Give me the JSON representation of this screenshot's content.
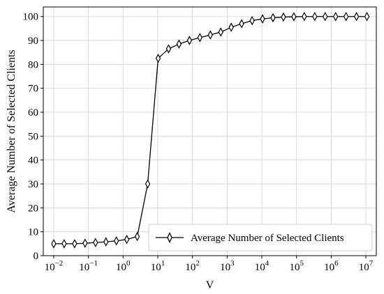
{
  "chart_data": {
    "type": "line",
    "xscale": "log",
    "xlabel": "V",
    "ylabel": "Average Number of Selected Clients",
    "xlim": [
      0.005,
      20000000
    ],
    "ylim": [
      0,
      104
    ],
    "grid": true,
    "legend_position": "lower right",
    "x_ticks": [
      {
        "base": "10",
        "exp": "−2",
        "value": 0.01
      },
      {
        "base": "10",
        "exp": "−1",
        "value": 0.1
      },
      {
        "base": "10",
        "exp": "0",
        "value": 1
      },
      {
        "base": "10",
        "exp": "1",
        "value": 10
      },
      {
        "base": "10",
        "exp": "2",
        "value": 100
      },
      {
        "base": "10",
        "exp": "3",
        "value": 1000
      },
      {
        "base": "10",
        "exp": "4",
        "value": 10000
      },
      {
        "base": "10",
        "exp": "5",
        "value": 100000
      },
      {
        "base": "10",
        "exp": "6",
        "value": 1000000
      },
      {
        "base": "10",
        "exp": "7",
        "value": 10000000
      }
    ],
    "y_ticks": [
      "0",
      "10",
      "20",
      "30",
      "40",
      "50",
      "60",
      "70",
      "80",
      "90",
      "100"
    ],
    "series": [
      {
        "name": "Average Number of Selected Clients",
        "color": "#000000",
        "marker": "thin-diamond",
        "x": [
          0.01,
          0.02,
          0.04,
          0.08,
          0.16,
          0.32,
          0.64,
          1.28,
          2.56,
          5.12,
          10.24,
          20.48,
          40.96,
          81.92,
          163.84,
          327.68,
          655.36,
          1310.72,
          2621.44,
          5242.88,
          10485.76,
          20971.52,
          41943.04,
          83886.08,
          167772.16,
          335544.32,
          671088.64,
          1342177.28,
          2684354.56,
          5368709.12,
          10737418.24
        ],
        "values": [
          5,
          5,
          5,
          5.2,
          5.5,
          5.8,
          6.2,
          6.8,
          8,
          30,
          82.5,
          86.5,
          88.5,
          90,
          91.2,
          92.3,
          93.5,
          95.5,
          97,
          98.3,
          99,
          99.5,
          99.8,
          99.9,
          100,
          100,
          100,
          100,
          100,
          100,
          100
        ]
      }
    ]
  }
}
